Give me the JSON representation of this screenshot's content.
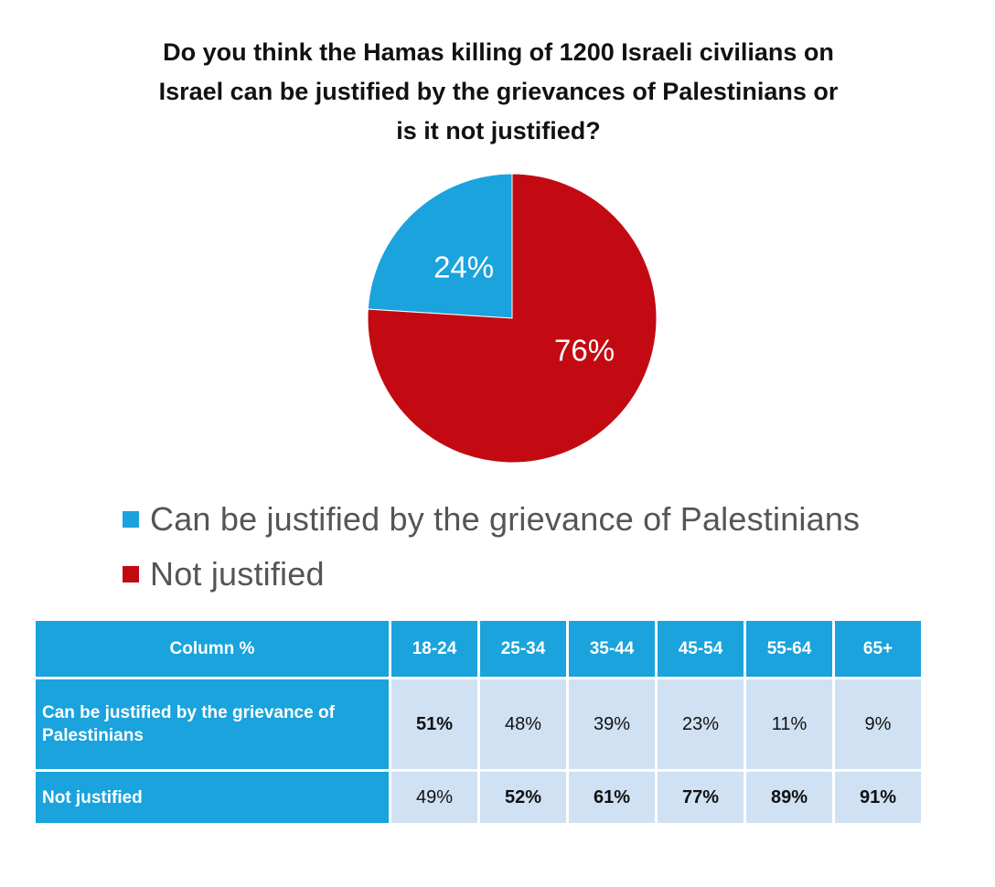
{
  "chart_data": {
    "type": "pie",
    "title_lines": [
      "Do you think the Hamas killing of 1200 Israeli civilians on",
      "Israel can be justified by the grievances of Palestinians or",
      "is it not justified?"
    ],
    "slices": [
      {
        "label": "Can be justified by the grievance of Palestinians",
        "value": 24,
        "display": "24%",
        "color": "#1aa3dc"
      },
      {
        "label": "Not justified",
        "value": 76,
        "display": "76%",
        "color": "#c30a12"
      }
    ],
    "legend_position": "bottom-left"
  },
  "table": {
    "corner_header": "Column %",
    "columns": [
      "18-24",
      "25-34",
      "35-44",
      "45-54",
      "55-64",
      "65+"
    ],
    "rows": [
      {
        "label": "Can be justified by the grievance of Palestinians",
        "values": [
          "51%",
          "48%",
          "39%",
          "23%",
          "11%",
          "9%"
        ],
        "bold": [
          true,
          false,
          false,
          false,
          false,
          false
        ]
      },
      {
        "label": "Not justified",
        "values": [
          "49%",
          "52%",
          "61%",
          "77%",
          "89%",
          "91%"
        ],
        "bold": [
          false,
          true,
          true,
          true,
          true,
          true
        ]
      }
    ],
    "header_color": "#1aa3dc",
    "cell_color": "#cfe1f3"
  }
}
